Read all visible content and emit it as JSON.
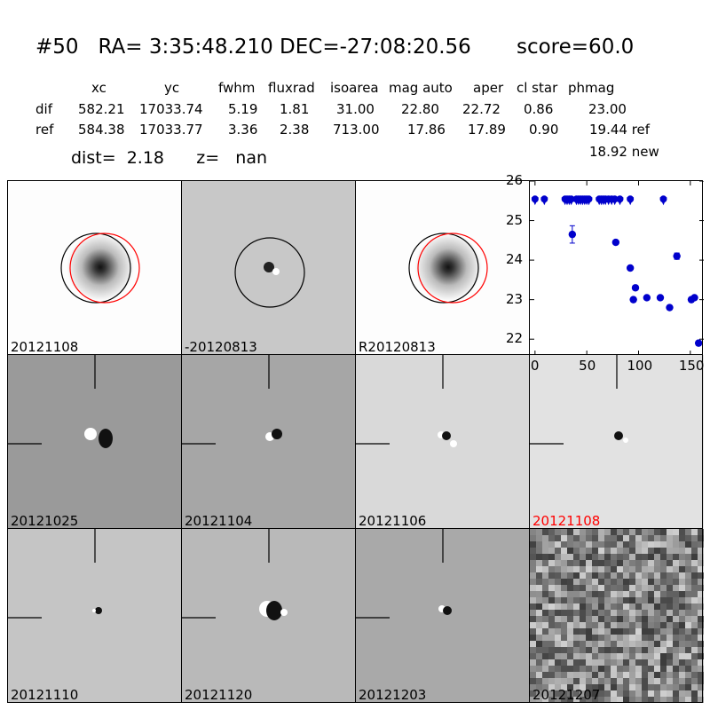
{
  "header": {
    "id": "#50",
    "ra": "RA= 3:35:48.210",
    "dec": "DEC=-27:08:20.56",
    "score": "score=60.0"
  },
  "table": {
    "columns": [
      "xc",
      "yc",
      "fwhm",
      "fluxrad",
      "isoarea",
      "mag auto",
      "aper",
      "cl star",
      "phmag"
    ],
    "dif": {
      "label": "dif",
      "values": [
        "582.21",
        "17033.74",
        "5.19",
        "1.81",
        "31.00",
        "22.80",
        "22.72",
        "0.86",
        "23.00"
      ]
    },
    "ref": {
      "label": "ref",
      "values": [
        "584.38",
        "17033.77",
        "3.36",
        "2.38",
        "713.00",
        "17.86",
        "17.89",
        "0.90",
        "19.44 ref"
      ]
    },
    "new": "18.92 new"
  },
  "dist": {
    "dist_label": "dist=",
    "dist_value": "2.18",
    "z_label": "z=",
    "z_value": "nan"
  },
  "panels": [
    {
      "label": "20121108",
      "bg": "#fdfdfd",
      "red": false
    },
    {
      "label": "-20120813",
      "bg": "#c8c8c8",
      "red": false
    },
    {
      "label": "R20120813",
      "bg": "#fdfdfd",
      "red": false
    },
    {
      "label": "20121025",
      "bg": "#9a9a9a",
      "red": false
    },
    {
      "label": "20121104",
      "bg": "#a6a6a6",
      "red": false
    },
    {
      "label": "20121106",
      "bg": "#d9d9d9",
      "red": false
    },
    {
      "label": "20121108",
      "bg": "#e2e2e2",
      "red": true
    },
    {
      "label": "20121110",
      "bg": "#c5c5c5",
      "red": false
    },
    {
      "label": "20121120",
      "bg": "#b9b9b9",
      "red": false
    },
    {
      "label": "20121203",
      "bg": "#a9a9a9",
      "red": false
    },
    {
      "label": "20121207",
      "bg": "#8a8a8a",
      "red": false
    }
  ],
  "chart_data": {
    "type": "scatter",
    "title": "",
    "xlabel": "",
    "ylabel": "",
    "xlim": [
      -5,
      163
    ],
    "ylim": [
      26,
      21.6
    ],
    "y_inverted": true,
    "xticks": [
      "0",
      "50",
      "100",
      "150"
    ],
    "yticks": [
      "22",
      "23",
      "24",
      "25",
      "26"
    ],
    "marker_color": "#0000cc",
    "detections": [
      {
        "x": 36,
        "y": 24.65,
        "err": 0.22
      },
      {
        "x": 78,
        "y": 24.45,
        "err": 0.05
      },
      {
        "x": 92,
        "y": 23.8,
        "err": 0.03
      },
      {
        "x": 95,
        "y": 23.0,
        "err": 0.03
      },
      {
        "x": 97,
        "y": 23.3,
        "err": 0.03
      },
      {
        "x": 108,
        "y": 23.05,
        "err": 0.02
      },
      {
        "x": 121,
        "y": 23.05,
        "err": 0.02
      },
      {
        "x": 130,
        "y": 22.8,
        "err": 0.03
      },
      {
        "x": 137,
        "y": 24.1,
        "err": 0.08
      },
      {
        "x": 151,
        "y": 23.0,
        "err": 0.03
      },
      {
        "x": 154,
        "y": 23.05,
        "err": 0.03
      },
      {
        "x": 158,
        "y": 21.9,
        "err": 0.02
      }
    ],
    "upper_limits": [
      {
        "x": 0,
        "y": 25.5
      },
      {
        "x": 9,
        "y": 25.5
      },
      {
        "x": 29,
        "y": 25.5
      },
      {
        "x": 31,
        "y": 25.5
      },
      {
        "x": 33,
        "y": 25.5
      },
      {
        "x": 35,
        "y": 25.5
      },
      {
        "x": 40,
        "y": 25.5
      },
      {
        "x": 42,
        "y": 25.5
      },
      {
        "x": 44,
        "y": 25.5
      },
      {
        "x": 46,
        "y": 25.5
      },
      {
        "x": 48,
        "y": 25.5
      },
      {
        "x": 50,
        "y": 25.5
      },
      {
        "x": 52,
        "y": 25.5
      },
      {
        "x": 62,
        "y": 25.5
      },
      {
        "x": 64,
        "y": 25.5
      },
      {
        "x": 66,
        "y": 25.5
      },
      {
        "x": 68,
        "y": 25.5
      },
      {
        "x": 71,
        "y": 25.5
      },
      {
        "x": 74,
        "y": 25.5
      },
      {
        "x": 77,
        "y": 25.5
      },
      {
        "x": 82,
        "y": 25.5
      },
      {
        "x": 92,
        "y": 25.5
      },
      {
        "x": 124,
        "y": 25.5
      }
    ]
  }
}
